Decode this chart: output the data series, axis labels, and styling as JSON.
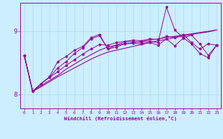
{
  "title": "",
  "xlabel": "Windchill (Refroidissement éolien,°C)",
  "background_color": "#cceeff",
  "line_color": "#990099",
  "grid_color": "#aadddd",
  "xlim": [
    -0.5,
    23.5
  ],
  "ylim": [
    7.78,
    9.45
  ],
  "yticks": [
    8,
    9
  ],
  "xticks": [
    0,
    1,
    2,
    3,
    4,
    5,
    6,
    7,
    8,
    9,
    10,
    11,
    12,
    13,
    14,
    15,
    16,
    17,
    18,
    19,
    20,
    21,
    22,
    23
  ],
  "series1_x": [
    0,
    1,
    2,
    3,
    4,
    5,
    6,
    7,
    8,
    9,
    10,
    11,
    12,
    13,
    14,
    15,
    16,
    17,
    18,
    19,
    20,
    21,
    22,
    23
  ],
  "series1_y": [
    8.62,
    8.05,
    8.12,
    8.2,
    8.28,
    8.35,
    8.42,
    8.49,
    8.56,
    8.62,
    8.67,
    8.7,
    8.73,
    8.76,
    8.79,
    8.82,
    8.85,
    8.87,
    8.9,
    8.92,
    8.95,
    8.97,
    8.99,
    9.02
  ],
  "series2_x": [
    0,
    1,
    2,
    3,
    4,
    5,
    6,
    7,
    8,
    9,
    10,
    11,
    12,
    13,
    14,
    15,
    16,
    17,
    18,
    19,
    20,
    21,
    22,
    23
  ],
  "series2_y": [
    8.62,
    8.05,
    8.14,
    8.22,
    8.3,
    8.4,
    8.48,
    8.56,
    8.63,
    8.7,
    8.75,
    8.78,
    8.8,
    8.82,
    8.84,
    8.86,
    8.88,
    8.9,
    8.92,
    8.94,
    8.96,
    8.98,
    9.0,
    9.02
  ],
  "series3_x": [
    0,
    1,
    2,
    3,
    4,
    5,
    6,
    7,
    8,
    9,
    10,
    11,
    12,
    13,
    14,
    15,
    16,
    17,
    18,
    19,
    20,
    21,
    22,
    23
  ],
  "series3_y": [
    8.62,
    8.05,
    8.17,
    8.27,
    8.42,
    8.52,
    8.65,
    8.74,
    8.88,
    8.93,
    8.72,
    8.75,
    8.8,
    8.81,
    8.8,
    8.82,
    8.78,
    8.88,
    8.77,
    8.89,
    8.94,
    8.8,
    8.62,
    8.78
  ],
  "series4_x": [
    0,
    1,
    2,
    3,
    4,
    5,
    6,
    7,
    8,
    9,
    10,
    11,
    12,
    13,
    14,
    15,
    16,
    17,
    18,
    19,
    20,
    21,
    22,
    23
  ],
  "series4_y": [
    8.62,
    8.05,
    8.17,
    8.28,
    8.52,
    8.6,
    8.7,
    8.76,
    8.9,
    8.95,
    8.72,
    8.78,
    8.83,
    8.84,
    8.82,
    8.84,
    8.82,
    9.38,
    9.02,
    8.9,
    8.8,
    8.65,
    8.58,
    8.78
  ],
  "series5_x": [
    0,
    1,
    2,
    3,
    4,
    5,
    6,
    7,
    8,
    9,
    10,
    11,
    12,
    13,
    14,
    15,
    16,
    17,
    18,
    19,
    20,
    21,
    22,
    23
  ],
  "series5_y": [
    8.62,
    8.05,
    8.17,
    8.27,
    8.36,
    8.46,
    8.55,
    8.64,
    8.72,
    8.79,
    8.78,
    8.82,
    8.84,
    8.86,
    8.85,
    8.88,
    8.87,
    8.92,
    8.9,
    8.95,
    8.82,
    8.72,
    8.8,
    8.78
  ]
}
